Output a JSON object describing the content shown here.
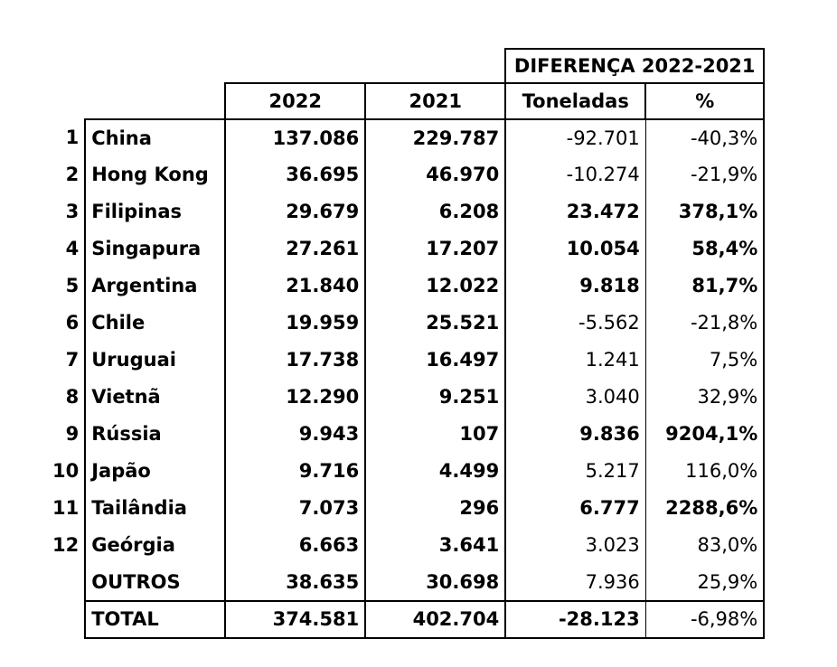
{
  "header": {
    "group_label": "DIFERENÇA 2022-2021",
    "col_2022": "2022",
    "col_2021": "2021",
    "col_tons": "Toneladas",
    "col_pct": "%"
  },
  "rows": [
    {
      "rank": "1",
      "name": "China",
      "y2022": "137.086",
      "y2021": "229.787",
      "tons": "-92.701",
      "pct": "-40,3%",
      "bold_diff": false
    },
    {
      "rank": "2",
      "name": "Hong Kong",
      "y2022": "36.695",
      "y2021": "46.970",
      "tons": "-10.274",
      "pct": "-21,9%",
      "bold_diff": false
    },
    {
      "rank": "3",
      "name": "Filipinas",
      "y2022": "29.679",
      "y2021": "6.208",
      "tons": "23.472",
      "pct": "378,1%",
      "bold_diff": true
    },
    {
      "rank": "4",
      "name": "Singapura",
      "y2022": "27.261",
      "y2021": "17.207",
      "tons": "10.054",
      "pct": "58,4%",
      "bold_diff": true
    },
    {
      "rank": "5",
      "name": "Argentina",
      "y2022": "21.840",
      "y2021": "12.022",
      "tons": "9.818",
      "pct": "81,7%",
      "bold_diff": true
    },
    {
      "rank": "6",
      "name": "Chile",
      "y2022": "19.959",
      "y2021": "25.521",
      "tons": "-5.562",
      "pct": "-21,8%",
      "bold_diff": false
    },
    {
      "rank": "7",
      "name": "Uruguai",
      "y2022": "17.738",
      "y2021": "16.497",
      "tons": "1.241",
      "pct": "7,5%",
      "bold_diff": false
    },
    {
      "rank": "8",
      "name": "Vietnã",
      "y2022": "12.290",
      "y2021": "9.251",
      "tons": "3.040",
      "pct": "32,9%",
      "bold_diff": false
    },
    {
      "rank": "9",
      "name": "Rússia",
      "y2022": "9.943",
      "y2021": "107",
      "tons": "9.836",
      "pct": "9204,1%",
      "bold_diff": true
    },
    {
      "rank": "10",
      "name": "Japão",
      "y2022": "9.716",
      "y2021": "4.499",
      "tons": "5.217",
      "pct": "116,0%",
      "bold_diff": false
    },
    {
      "rank": "11",
      "name": "Tailândia",
      "y2022": "7.073",
      "y2021": "296",
      "tons": "6.777",
      "pct": "2288,6%",
      "bold_diff": true
    },
    {
      "rank": "12",
      "name": "Geórgia",
      "y2022": "6.663",
      "y2021": "3.641",
      "tons": "3.023",
      "pct": "83,0%",
      "bold_diff": false
    }
  ],
  "others": {
    "name": "OUTROS",
    "y2022": "38.635",
    "y2021": "30.698",
    "tons": "7.936",
    "pct": "25,9%"
  },
  "total": {
    "name": "TOTAL",
    "y2022": "374.581",
    "y2021": "402.704",
    "tons": "-28.123",
    "pct": "-6,98%"
  }
}
